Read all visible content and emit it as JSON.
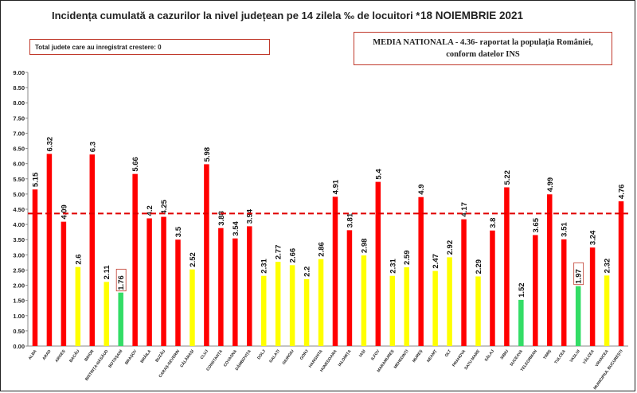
{
  "header": {
    "title": "Incidența cumulată a cazurilor la nivel județean pe 14 zilela ‰ de locuitori *",
    "date": "18 NOIEMBRIE 2021"
  },
  "counter_box": {
    "text": "Total judete care au inregistrat crestere: 0"
  },
  "media_box": {
    "line1": "MEDIA NATIONALA - 4.36- raportat la populația României,",
    "line2": "conform datelor INS"
  },
  "colors": {
    "red": "#ff0000",
    "yellow": "#ffff00",
    "green": "#33dd66",
    "reference_line": "#e00000",
    "axis": "#888888"
  },
  "chart_data": {
    "type": "bar",
    "title": "Incidența cumulată a cazurilor la nivel județean pe 14 zilela ‰ de locuitori *",
    "xlabel": "",
    "ylabel": "",
    "ylim": [
      0,
      9
    ],
    "yticks": [
      "0.00",
      "0.50",
      "1.00",
      "1.50",
      "2.00",
      "2.50",
      "3.00",
      "3.50",
      "4.00",
      "4.50",
      "5.00",
      "5.50",
      "6.00",
      "6.50",
      "7.00",
      "7.50",
      "8.00",
      "8.50",
      "9.00"
    ],
    "grid": false,
    "reference_line": {
      "value": 4.36,
      "style": "dashed"
    },
    "categories": [
      "ALBA",
      "ARAD",
      "ARGEȘ",
      "BACĂU",
      "BIHOR",
      "BISTRIȚA-NĂSĂUD",
      "BOTOȘANI",
      "BRAȘOV",
      "BRĂILA",
      "BUZĂU",
      "CARAȘ-SEVERIN",
      "CĂLĂRAȘI",
      "CLUJ",
      "CONSTANȚA",
      "COVASNA",
      "DÂMBOVIȚA",
      "DOLJ",
      "GALAȚI",
      "GIURGIU",
      "GORJ",
      "HARGHITA",
      "HUNEDOARA",
      "IALOMIȚA",
      "IAȘI",
      "ILFOV",
      "MARAMUREȘ",
      "MEHEDINȚI",
      "MUREȘ",
      "NEAMȚ",
      "OLT",
      "PRAHOVA",
      "SATU MARE",
      "SĂLAJ",
      "SIBIU",
      "SUCEAVA",
      "TELEORMAN",
      "TIMIȘ",
      "TULCEA",
      "VASLUI",
      "VÂLCEA",
      "VRANCEA",
      "MUNICIPIUL BUCUREȘTI"
    ],
    "values": [
      5.15,
      6.32,
      4.09,
      2.6,
      6.3,
      2.11,
      1.76,
      5.66,
      4.2,
      4.25,
      3.5,
      2.52,
      5.98,
      3.88,
      3.54,
      3.94,
      2.31,
      2.77,
      2.66,
      2.2,
      2.86,
      4.91,
      3.81,
      2.98,
      5.4,
      2.31,
      2.59,
      4.9,
      2.47,
      2.92,
      4.17,
      2.29,
      3.8,
      5.22,
      1.52,
      3.65,
      4.99,
      3.51,
      1.97,
      3.24,
      2.32,
      4.76
    ],
    "labels": [
      "5.15",
      "6.32",
      "4.09",
      "2.6",
      "6.3",
      "2.11",
      "1.76",
      "5.66",
      "4.2",
      "4.25",
      "3.5",
      "2.52",
      "5.98",
      "3.88",
      "3.54",
      "3.94",
      "2.31",
      "2.77",
      "2.66",
      "2.2",
      "2.86",
      "4.91",
      "3.81",
      "2.98",
      "5.4",
      "2.31",
      "2.59",
      "4.9",
      "2.47",
      "2.92",
      "4.17",
      "2.29",
      "3.8",
      "5.22",
      "1.52",
      "3.65",
      "4.99",
      "3.51",
      "1.97",
      "3.24",
      "2.32",
      "4.76"
    ],
    "bar_colors": [
      "red",
      "red",
      "red",
      "yellow",
      "red",
      "yellow",
      "green",
      "red",
      "red",
      "red",
      "red",
      "yellow",
      "red",
      "red",
      "red",
      "red",
      "yellow",
      "yellow",
      "yellow",
      "yellow",
      "yellow",
      "red",
      "red",
      "yellow",
      "red",
      "yellow",
      "yellow",
      "red",
      "yellow",
      "yellow",
      "red",
      "yellow",
      "red",
      "red",
      "green",
      "red",
      "red",
      "red",
      "green",
      "red",
      "yellow",
      "red"
    ],
    "boxed_labels": [
      6,
      38
    ]
  }
}
